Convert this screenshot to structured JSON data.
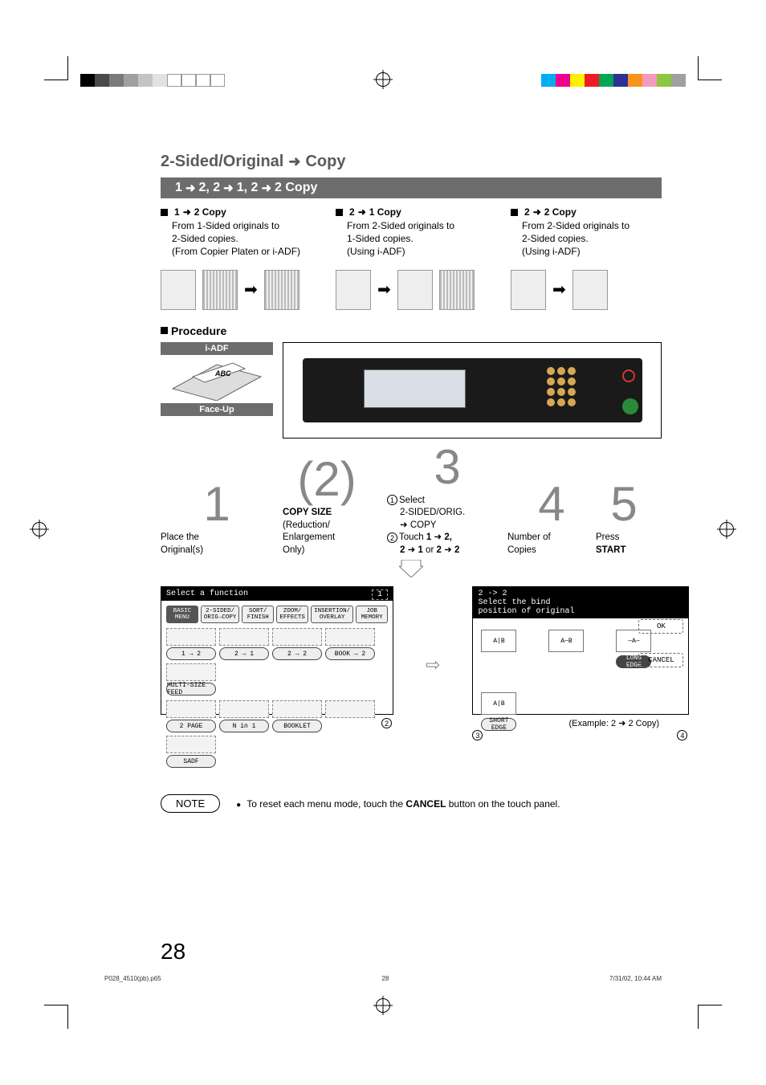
{
  "colorbar_left": [
    "#000000",
    "#4a4a4a",
    "#7a7a7a",
    "#a0a0a0",
    "#c4c4c4",
    "#e2e2e2",
    "#ffffff",
    "#ffffff",
    "#ffffff",
    "#ffffff"
  ],
  "colorbar_right": [
    "#00aeef",
    "#ec008c",
    "#fff200",
    "#ed1c24",
    "#00a651",
    "#2e3192",
    "#f7941d",
    "#f49ac1",
    "#8dc63f",
    "#a0a0a0"
  ],
  "title": {
    "a": "2-Sided/Original",
    "b": "Copy"
  },
  "subbar": {
    "s1": "1",
    "s2": "2, 2",
    "s3": "1, 2",
    "s4": "2 Copy"
  },
  "modes": [
    {
      "head_a": "1",
      "head_b": "2 Copy",
      "l1": "From 1-Sided originals to",
      "l2": "2-Sided copies.",
      "l3": "(From Copier Platen or i-ADF)"
    },
    {
      "head_a": "2",
      "head_b": "1 Copy",
      "l1": "From 2-Sided originals to",
      "l2": "1-Sided copies.",
      "l3": "(Using i-ADF)"
    },
    {
      "head_a": "2",
      "head_b": "2 Copy",
      "l1": "From 2-Sided originals to",
      "l2": "2-Sided copies.",
      "l3": "(Using i-ADF)"
    }
  ],
  "procedure_label": "Procedure",
  "adf": {
    "top": "i-ADF",
    "bottom": "Face-Up"
  },
  "steps": {
    "s1": {
      "num": "1",
      "l1": "Place the",
      "l2": "Original(s)"
    },
    "s2": {
      "num": "2",
      "l1": "COPY SIZE",
      "l2": "(Reduction/",
      "l3": "Enlargement",
      "l4": "Only)"
    },
    "s3": {
      "num": "3",
      "c1": "1",
      "l1": "Select",
      "l2": "2-SIDED/ORIG.",
      "l3": "COPY",
      "c2": "2",
      "l4": "Touch ",
      "l4b": "1",
      "l4c": "2,",
      "l5a": "2",
      "l5b": "1",
      "l5c": " or ",
      "l5d": "2",
      "l5e": "2"
    },
    "s4": {
      "num": "4",
      "l1": "Number of",
      "l2": "Copies"
    },
    "s5": {
      "num": "5",
      "l1": "Press",
      "l2": "START"
    }
  },
  "screen1": {
    "title": "Select a function",
    "page_icon": "1",
    "tabs": [
      "BASIC MENU",
      "2-SIDED/\nORIG→COPY",
      "SORT/\nFINISH",
      "ZOOM/\nEFFECTS",
      "INSERTION/\nOVERLAY",
      "JOB\nMEMORY"
    ],
    "btns_row1": [
      "1 → 2",
      "2 → 1",
      "2 → 2",
      "BOOK → 2",
      "MULTI-SIZE\nFEED"
    ],
    "btns_row2": [
      "2 PAGE",
      "N in 1",
      "BOOKLET",
      "",
      "SADF"
    ]
  },
  "screen2": {
    "title_l1": "2 -> 2",
    "title_l2": "Select the bind",
    "title_l3": "position of original",
    "icons": [
      "A|B",
      "A—B",
      "—A—",
      "A|B"
    ],
    "btns": [
      "LONG EDGE",
      "SHORT EDGE"
    ],
    "side": [
      "OK",
      "CANCEL"
    ],
    "example": "(Example: 2",
    "example_b": "2 Copy)"
  },
  "foot_circ": {
    "a": "2",
    "b": "3",
    "c": "4"
  },
  "note": {
    "pill": "NOTE",
    "text_a": "To reset each menu mode, touch the ",
    "text_b": "CANCEL",
    "text_c": " button on the touch panel."
  },
  "page_number": "28",
  "footer": {
    "a": "P028_4510(pb).p65",
    "b": "28",
    "c": "7/31/02, 10:44 AM"
  }
}
